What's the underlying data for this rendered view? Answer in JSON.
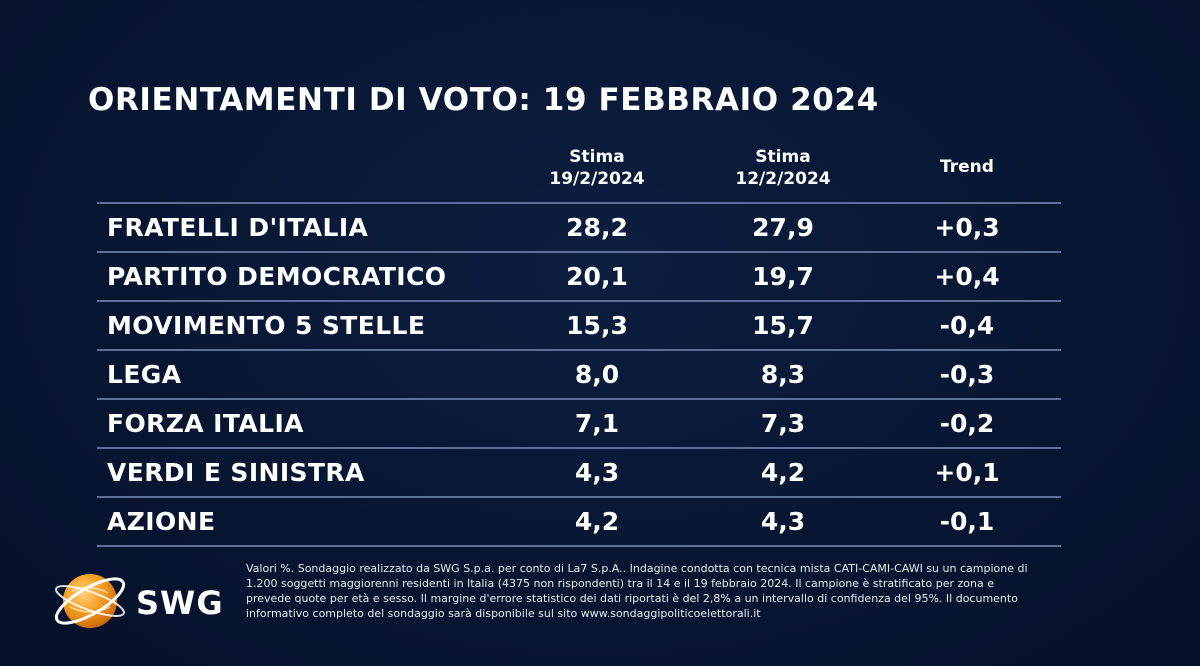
{
  "title": "ORIENTAMENTI DI VOTO: 19 FEBBRAIO 2024",
  "chart_data": {
    "type": "table",
    "columns": [
      {
        "line1": "Stima",
        "line2": "19/2/2024"
      },
      {
        "line1": "Stima",
        "line2": "12/2/2024"
      },
      {
        "line1": "Trend",
        "line2": ""
      }
    ],
    "rows": [
      {
        "party": "FRATELLI D'ITALIA",
        "stima_19_2": "28,2",
        "stima_12_2": "27,9",
        "trend": "+0,3"
      },
      {
        "party": "PARTITO DEMOCRATICO",
        "stima_19_2": "20,1",
        "stima_12_2": "19,7",
        "trend": "+0,4"
      },
      {
        "party": "MOVIMENTO 5 STELLE",
        "stima_19_2": "15,3",
        "stima_12_2": "15,7",
        "trend": "-0,4"
      },
      {
        "party": "LEGA",
        "stima_19_2": "8,0",
        "stima_12_2": "8,3",
        "trend": "-0,3"
      },
      {
        "party": "FORZA ITALIA",
        "stima_19_2": "7,1",
        "stima_12_2": "7,3",
        "trend": "-0,2"
      },
      {
        "party": "VERDI E SINISTRA",
        "stima_19_2": "4,3",
        "stima_12_2": "4,2",
        "trend": "+0,1"
      },
      {
        "party": "AZIONE",
        "stima_19_2": "4,2",
        "stima_12_2": "4,3",
        "trend": "-0,1"
      }
    ]
  },
  "footer": {
    "brand": "SWG",
    "logo_icon": "swg-globe-logo-icon",
    "note": "Valori %. Sondaggio realizzato da SWG S.p.a. per conto di La7 S.p.A.. Indagine condotta con tecnica mista CATI-CAMI-CAWI su un campione di 1.200 soggetti maggiorenni residenti in Italia (4375 non rispondenti) tra il 14 e il 19 febbraio 2024. Il campione è stratificato per zona e prevede quote per età e sesso. Il margine d'errore statistico dei dati riportati è del 2,8% a un intervallo di confidenza del 95%. Il documento informativo completo del sondaggio sarà disponibile sul sito www.sondaggipoliticoelettorali.it"
  },
  "colors": {
    "background": "#081632",
    "divider": "#5d6f95",
    "logo_orange": "#f39a1d"
  }
}
